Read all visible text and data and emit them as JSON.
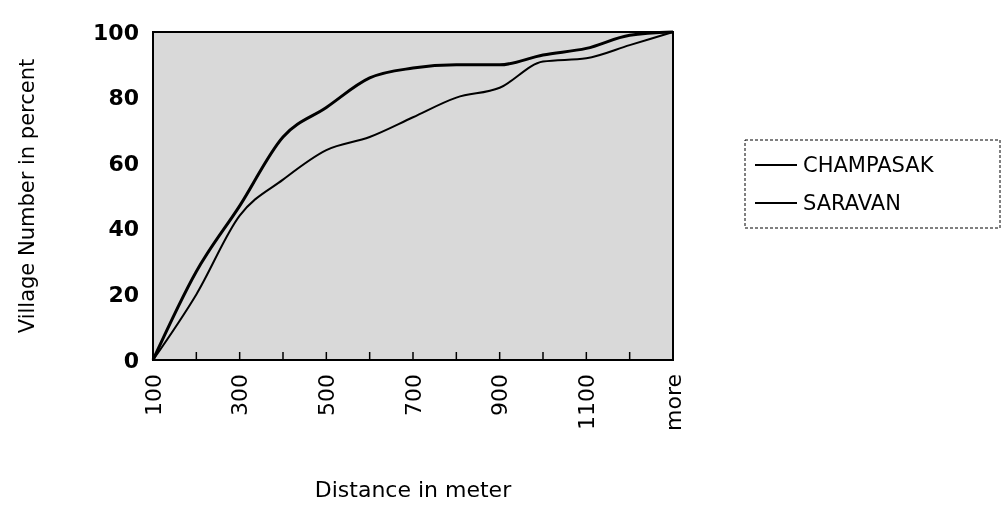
{
  "chart_data": {
    "type": "line",
    "xlabel": "Distance in meter",
    "ylabel": "Village Number in percent",
    "categories": [
      "100",
      null,
      "300",
      null,
      "500",
      null,
      "700",
      null,
      "900",
      null,
      "1100",
      null,
      "more"
    ],
    "series": [
      {
        "name": "CHAMPASAK",
        "color": "#000000",
        "values": [
          0,
          27,
          47,
          68,
          77,
          86,
          89,
          90,
          90,
          93,
          95,
          99,
          100
        ]
      },
      {
        "name": "SARAVAN",
        "color": "#000000",
        "values": [
          0,
          20,
          44,
          55,
          64,
          68,
          74,
          80,
          83,
          91,
          92,
          96,
          100
        ]
      }
    ],
    "ylim": [
      0,
      100
    ],
    "yticks": [
      0,
      20,
      40,
      60,
      80,
      100
    ],
    "legend": "right",
    "marker": "none",
    "line_style": "solid"
  }
}
